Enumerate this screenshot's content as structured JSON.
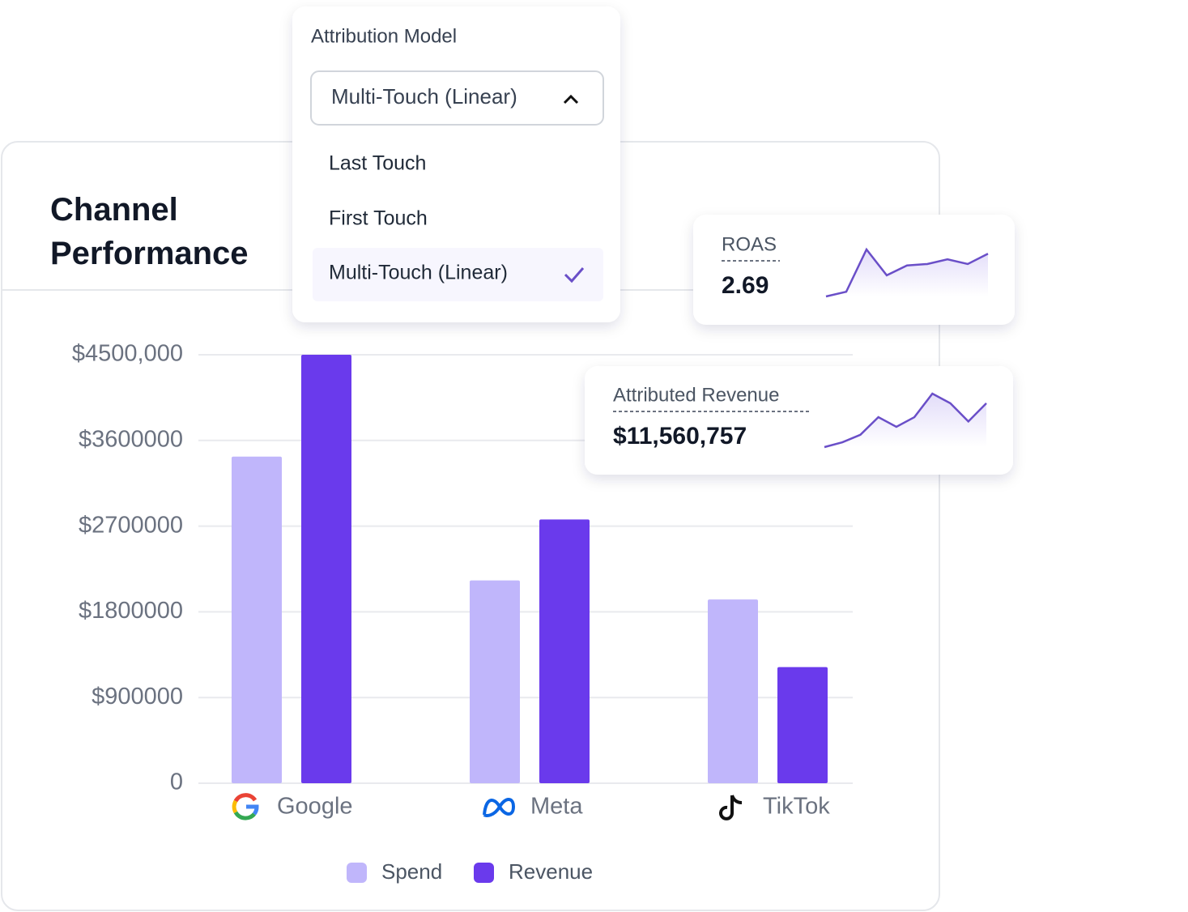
{
  "chart_data": [
    {
      "type": "bar",
      "title": "Channel Performance",
      "categories": [
        "Google",
        "Meta",
        "TikTok"
      ],
      "series": [
        {
          "name": "Spend",
          "color": "#c0b6fb",
          "values": [
            3430000,
            2130000,
            1930000
          ]
        },
        {
          "name": "Revenue",
          "color": "#6a3aec",
          "values": [
            4500000,
            2770000,
            1220000
          ]
        }
      ],
      "ylim": [
        0,
        4500000
      ],
      "yticks": [
        0,
        {
          "value": 900000,
          "label": "$900000"
        },
        {
          "value": 1800000,
          "label": "$1800000"
        },
        {
          "value": 2700000,
          "label": "$2700000"
        },
        {
          "value": 3600000,
          "label": "$3600000"
        },
        {
          "value": 4500000,
          "label": "$4500,000"
        }
      ],
      "grid": true
    },
    {
      "type": "line",
      "title": "ROAS",
      "value": 2.69,
      "color": "#6a4fc8",
      "values": [
        0,
        10,
        100,
        45,
        66,
        69,
        79,
        69,
        91
      ],
      "ylim": [
        0,
        100
      ]
    },
    {
      "type": "line",
      "title": "Attributed Revenue",
      "value": "$11,560,757",
      "color": "#6a4fc8",
      "values": [
        0,
        9,
        23,
        56,
        38,
        56,
        100,
        82,
        48,
        82
      ],
      "ylim": [
        0,
        100
      ]
    }
  ],
  "dropdown": {
    "label": "Attribution Model",
    "selected": "Multi-Touch (Linear)",
    "options": [
      "Last Touch",
      "First Touch",
      "Multi-Touch (Linear)"
    ]
  }
}
